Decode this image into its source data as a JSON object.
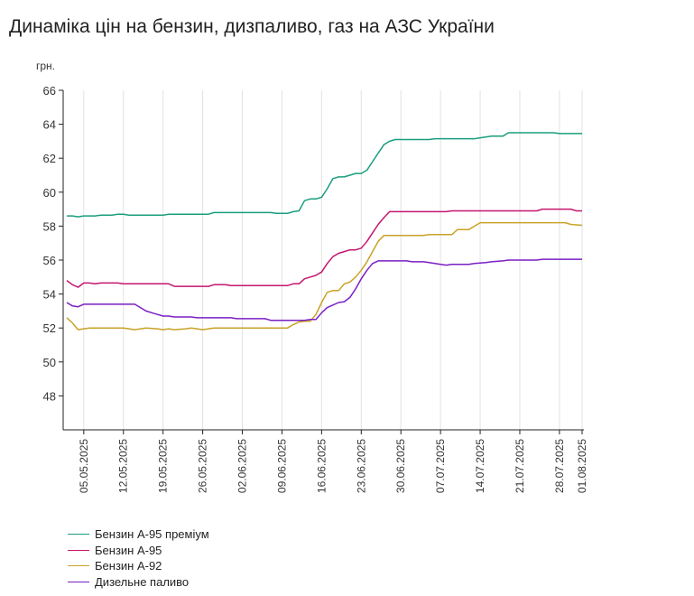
{
  "title": "Динаміка цін на бензин, дизпаливо, газ на АЗС України",
  "chart_data": {
    "type": "line",
    "title": "Динаміка цін на бензин, дизпаливо, газ на АЗС України",
    "ylabel": "грн.",
    "xlabel": "",
    "ylim": [
      46,
      66
    ],
    "yticks": [
      48,
      50,
      52,
      54,
      56,
      58,
      60,
      62,
      64,
      66
    ],
    "xlim": [
      "2025-05-02",
      "2025-08-01"
    ],
    "xticks": [
      "05.05.2025",
      "12.05.2025",
      "19.05.2025",
      "26.05.2025",
      "02.06.2025",
      "09.06.2025",
      "16.06.2025",
      "23.06.2025",
      "30.06.2025",
      "07.07.2025",
      "14.07.2025",
      "21.07.2025",
      "28.07.2025",
      "01.08.2025"
    ],
    "grid": "vertical",
    "legend_position": "bottom",
    "series": [
      {
        "name": "Бензин А-95 преміум",
        "color": "#1a9e7e",
        "points": [
          [
            "2025-05-02",
            58.6
          ],
          [
            "2025-05-03",
            58.6
          ],
          [
            "2025-05-04",
            58.55
          ],
          [
            "2025-05-05",
            58.6
          ],
          [
            "2025-05-06",
            58.6
          ],
          [
            "2025-05-07",
            58.6
          ],
          [
            "2025-05-08",
            58.65
          ],
          [
            "2025-05-09",
            58.65
          ],
          [
            "2025-05-10",
            58.65
          ],
          [
            "2025-05-11",
            58.7
          ],
          [
            "2025-05-12",
            58.7
          ],
          [
            "2025-05-13",
            58.65
          ],
          [
            "2025-05-19",
            58.65
          ],
          [
            "2025-05-20",
            58.7
          ],
          [
            "2025-05-27",
            58.7
          ],
          [
            "2025-05-28",
            58.8
          ],
          [
            "2025-06-07",
            58.8
          ],
          [
            "2025-06-08",
            58.75
          ],
          [
            "2025-06-10",
            58.75
          ],
          [
            "2025-06-11",
            58.85
          ],
          [
            "2025-06-12",
            58.9
          ],
          [
            "2025-06-13",
            59.5
          ],
          [
            "2025-06-14",
            59.6
          ],
          [
            "2025-06-15",
            59.6
          ],
          [
            "2025-06-16",
            59.7
          ],
          [
            "2025-06-17",
            60.2
          ],
          [
            "2025-06-18",
            60.8
          ],
          [
            "2025-06-19",
            60.9
          ],
          [
            "2025-06-20",
            60.9
          ],
          [
            "2025-06-21",
            61.0
          ],
          [
            "2025-06-22",
            61.1
          ],
          [
            "2025-06-23",
            61.1
          ],
          [
            "2025-06-24",
            61.3
          ],
          [
            "2025-06-25",
            61.8
          ],
          [
            "2025-06-26",
            62.3
          ],
          [
            "2025-06-27",
            62.8
          ],
          [
            "2025-06-28",
            63.0
          ],
          [
            "2025-06-29",
            63.1
          ],
          [
            "2025-07-05",
            63.1
          ],
          [
            "2025-07-06",
            63.15
          ],
          [
            "2025-07-13",
            63.15
          ],
          [
            "2025-07-14",
            63.2
          ],
          [
            "2025-07-16",
            63.3
          ],
          [
            "2025-07-18",
            63.3
          ],
          [
            "2025-07-19",
            63.5
          ],
          [
            "2025-07-27",
            63.5
          ],
          [
            "2025-07-28",
            63.45
          ],
          [
            "2025-08-01",
            63.45
          ]
        ]
      },
      {
        "name": "Бензин А-95",
        "color": "#c4166f",
        "points": [
          [
            "2025-05-02",
            54.8
          ],
          [
            "2025-05-03",
            54.55
          ],
          [
            "2025-05-04",
            54.4
          ],
          [
            "2025-05-05",
            54.65
          ],
          [
            "2025-05-06",
            54.65
          ],
          [
            "2025-05-07",
            54.6
          ],
          [
            "2025-05-08",
            54.65
          ],
          [
            "2025-05-11",
            54.65
          ],
          [
            "2025-05-12",
            54.6
          ],
          [
            "2025-05-20",
            54.6
          ],
          [
            "2025-05-21",
            54.45
          ],
          [
            "2025-05-27",
            54.45
          ],
          [
            "2025-05-28",
            54.55
          ],
          [
            "2025-05-30",
            54.55
          ],
          [
            "2025-05-31",
            54.5
          ],
          [
            "2025-06-10",
            54.5
          ],
          [
            "2025-06-11",
            54.6
          ],
          [
            "2025-06-12",
            54.6
          ],
          [
            "2025-06-13",
            54.9
          ],
          [
            "2025-06-14",
            55.0
          ],
          [
            "2025-06-15",
            55.1
          ],
          [
            "2025-06-16",
            55.3
          ],
          [
            "2025-06-17",
            55.8
          ],
          [
            "2025-06-18",
            56.2
          ],
          [
            "2025-06-19",
            56.4
          ],
          [
            "2025-06-20",
            56.5
          ],
          [
            "2025-06-21",
            56.6
          ],
          [
            "2025-06-22",
            56.6
          ],
          [
            "2025-06-23",
            56.7
          ],
          [
            "2025-06-24",
            57.1
          ],
          [
            "2025-06-25",
            57.6
          ],
          [
            "2025-06-26",
            58.1
          ],
          [
            "2025-06-27",
            58.5
          ],
          [
            "2025-06-28",
            58.85
          ],
          [
            "2025-07-08",
            58.85
          ],
          [
            "2025-07-09",
            58.9
          ],
          [
            "2025-07-24",
            58.9
          ],
          [
            "2025-07-25",
            59.0
          ],
          [
            "2025-07-30",
            59.0
          ],
          [
            "2025-07-31",
            58.9
          ],
          [
            "2025-08-01",
            58.9
          ]
        ]
      },
      {
        "name": "Бензин А-92",
        "color": "#c9a227",
        "points": [
          [
            "2025-05-02",
            52.6
          ],
          [
            "2025-05-03",
            52.3
          ],
          [
            "2025-05-04",
            51.9
          ],
          [
            "2025-05-05",
            51.95
          ],
          [
            "2025-05-06",
            52.0
          ],
          [
            "2025-05-12",
            52.0
          ],
          [
            "2025-05-13",
            51.95
          ],
          [
            "2025-05-14",
            51.9
          ],
          [
            "2025-05-15",
            51.95
          ],
          [
            "2025-05-16",
            52.0
          ],
          [
            "2025-05-18",
            51.95
          ],
          [
            "2025-05-19",
            51.9
          ],
          [
            "2025-05-20",
            51.95
          ],
          [
            "2025-05-21",
            51.9
          ],
          [
            "2025-05-23",
            51.95
          ],
          [
            "2025-05-24",
            52.0
          ],
          [
            "2025-05-25",
            51.95
          ],
          [
            "2025-05-26",
            51.9
          ],
          [
            "2025-05-27",
            51.95
          ],
          [
            "2025-05-28",
            52.0
          ],
          [
            "2025-06-10",
            52.0
          ],
          [
            "2025-06-11",
            52.2
          ],
          [
            "2025-06-12",
            52.35
          ],
          [
            "2025-06-13",
            52.4
          ],
          [
            "2025-06-14",
            52.4
          ],
          [
            "2025-06-15",
            52.8
          ],
          [
            "2025-06-16",
            53.5
          ],
          [
            "2025-06-17",
            54.1
          ],
          [
            "2025-06-18",
            54.2
          ],
          [
            "2025-06-19",
            54.2
          ],
          [
            "2025-06-20",
            54.6
          ],
          [
            "2025-06-21",
            54.7
          ],
          [
            "2025-06-22",
            55.0
          ],
          [
            "2025-06-23",
            55.4
          ],
          [
            "2025-06-24",
            55.9
          ],
          [
            "2025-06-25",
            56.5
          ],
          [
            "2025-06-26",
            57.1
          ],
          [
            "2025-06-27",
            57.45
          ],
          [
            "2025-07-04",
            57.45
          ],
          [
            "2025-07-05",
            57.5
          ],
          [
            "2025-07-09",
            57.5
          ],
          [
            "2025-07-10",
            57.8
          ],
          [
            "2025-07-12",
            57.8
          ],
          [
            "2025-07-13",
            58.0
          ],
          [
            "2025-07-14",
            58.2
          ],
          [
            "2025-07-29",
            58.2
          ],
          [
            "2025-07-30",
            58.1
          ],
          [
            "2025-08-01",
            58.05
          ]
        ]
      },
      {
        "name": "Дизельне паливо",
        "color": "#7a1fc4",
        "points": [
          [
            "2025-05-02",
            53.5
          ],
          [
            "2025-05-03",
            53.3
          ],
          [
            "2025-05-04",
            53.25
          ],
          [
            "2025-05-05",
            53.4
          ],
          [
            "2025-05-14",
            53.4
          ],
          [
            "2025-05-15",
            53.2
          ],
          [
            "2025-05-16",
            53.0
          ],
          [
            "2025-05-17",
            52.9
          ],
          [
            "2025-05-18",
            52.8
          ],
          [
            "2025-05-19",
            52.7
          ],
          [
            "2025-05-20",
            52.7
          ],
          [
            "2025-05-21",
            52.65
          ],
          [
            "2025-05-24",
            52.65
          ],
          [
            "2025-05-25",
            52.6
          ],
          [
            "2025-05-31",
            52.6
          ],
          [
            "2025-06-01",
            52.55
          ],
          [
            "2025-06-06",
            52.55
          ],
          [
            "2025-06-07",
            52.45
          ],
          [
            "2025-06-13",
            52.45
          ],
          [
            "2025-06-14",
            52.5
          ],
          [
            "2025-06-15",
            52.5
          ],
          [
            "2025-06-16",
            52.9
          ],
          [
            "2025-06-17",
            53.2
          ],
          [
            "2025-06-18",
            53.35
          ],
          [
            "2025-06-19",
            53.5
          ],
          [
            "2025-06-20",
            53.55
          ],
          [
            "2025-06-21",
            53.8
          ],
          [
            "2025-06-22",
            54.3
          ],
          [
            "2025-06-23",
            54.9
          ],
          [
            "2025-06-24",
            55.4
          ],
          [
            "2025-06-25",
            55.8
          ],
          [
            "2025-06-26",
            55.95
          ],
          [
            "2025-07-01",
            55.95
          ],
          [
            "2025-07-02",
            55.9
          ],
          [
            "2025-07-04",
            55.9
          ],
          [
            "2025-07-05",
            55.85
          ],
          [
            "2025-07-06",
            55.8
          ],
          [
            "2025-07-07",
            55.75
          ],
          [
            "2025-07-08",
            55.7
          ],
          [
            "2025-07-09",
            55.75
          ],
          [
            "2025-07-12",
            55.75
          ],
          [
            "2025-07-13",
            55.8
          ],
          [
            "2025-07-15",
            55.85
          ],
          [
            "2025-07-16",
            55.9
          ],
          [
            "2025-07-18",
            55.95
          ],
          [
            "2025-07-19",
            56.0
          ],
          [
            "2025-07-24",
            56.0
          ],
          [
            "2025-07-25",
            56.05
          ],
          [
            "2025-08-01",
            56.05
          ]
        ]
      }
    ]
  }
}
